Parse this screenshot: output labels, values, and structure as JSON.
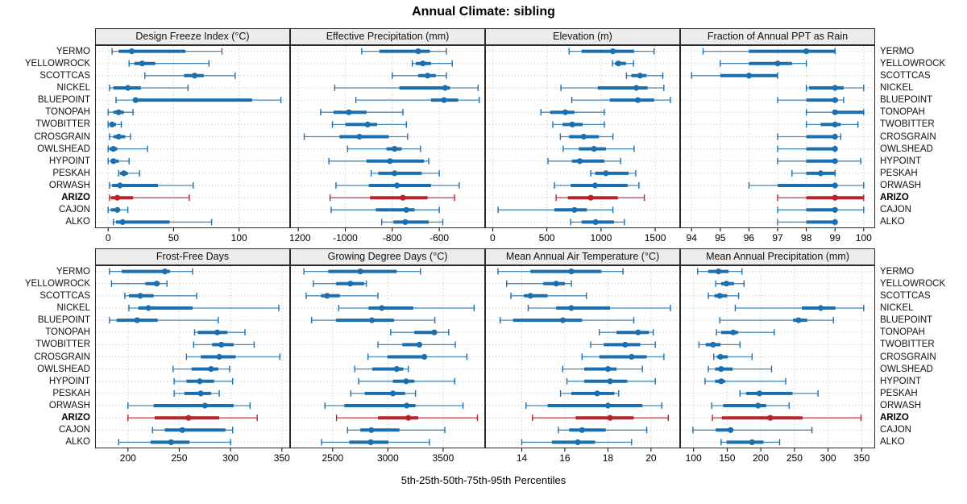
{
  "title": "Annual Climate: sibling",
  "footer": "5th-25th-50th-75th-95th Percentiles",
  "colors": {
    "series": "#1b6fae",
    "highlight": "#b5252c",
    "grid": "#bdbdbd",
    "strip_bg": "#ececec",
    "panel_border": "#2b2b2b",
    "text": "#000000"
  },
  "sites": [
    "YERMO",
    "YELLOWROCK",
    "SCOTTCAS",
    "NICKEL",
    "BLUEPOINT",
    "TONOPAH",
    "TWOBITTER",
    "CROSGRAIN",
    "OWLSHEAD",
    "HYPOINT",
    "PESKAH",
    "ORWASH",
    "ARIZO",
    "CAJON",
    "ALKO"
  ],
  "highlight_site": "ARIZO",
  "percentile_levels": [
    5,
    25,
    50,
    75,
    95
  ],
  "chart_data": [
    {
      "type": "dotplot",
      "title": "Design Freeze Index (°C)",
      "xlim": [
        -10,
        139
      ],
      "ticks": [
        0,
        50,
        100
      ],
      "tick_labels": [
        "0",
        "50",
        "100"
      ],
      "values": [
        [
          3,
          8,
          18,
          59,
          87
        ],
        [
          16,
          20,
          26,
          36,
          77
        ],
        [
          28,
          58,
          66,
          73,
          97
        ],
        [
          1,
          4,
          15,
          25,
          61
        ],
        [
          6,
          19,
          21,
          110,
          132
        ],
        [
          0,
          4,
          8,
          12,
          19
        ],
        [
          0,
          1,
          3,
          6,
          10
        ],
        [
          1,
          4,
          8,
          13,
          17
        ],
        [
          0,
          1,
          4,
          7,
          30
        ],
        [
          0,
          2,
          4,
          8,
          16
        ],
        [
          8,
          9,
          12,
          15,
          24
        ],
        [
          1,
          3,
          9,
          38,
          65
        ],
        [
          1,
          2,
          7,
          19,
          62
        ],
        [
          0,
          2,
          7,
          9,
          15
        ],
        [
          4,
          6,
          11,
          47,
          79
        ]
      ]
    },
    {
      "type": "dotplot",
      "title": "Effective Precipitation (mm)",
      "xlim": [
        -1235,
        -405
      ],
      "ticks": [
        -1200,
        -1000,
        -800,
        -600
      ],
      "tick_labels": [
        "-1200",
        "-1000",
        "-800",
        "-600"
      ],
      "values": [
        [
          -930,
          -855,
          -690,
          -640,
          -570
        ],
        [
          -715,
          -700,
          -670,
          -635,
          -545
        ],
        [
          -800,
          -690,
          -650,
          -615,
          -570
        ],
        [
          -1045,
          -770,
          -575,
          -555,
          -435
        ],
        [
          -955,
          -635,
          -580,
          -520,
          -430
        ],
        [
          -1105,
          -1050,
          -985,
          -910,
          -755
        ],
        [
          -1055,
          -1000,
          -905,
          -865,
          -740
        ],
        [
          -1175,
          -1025,
          -940,
          -815,
          -735
        ],
        [
          -990,
          -825,
          -790,
          -760,
          -680
        ],
        [
          -1070,
          -910,
          -810,
          -665,
          -645
        ],
        [
          -890,
          -860,
          -790,
          -675,
          -600
        ],
        [
          -1040,
          -900,
          -780,
          -635,
          -515
        ],
        [
          -1065,
          -895,
          -755,
          -650,
          -535
        ],
        [
          -1060,
          -870,
          -740,
          -705,
          -600
        ],
        [
          -845,
          -795,
          -745,
          -645,
          -585
        ]
      ]
    },
    {
      "type": "dotplot",
      "title": "Elevation (m)",
      "xlim": [
        -70,
        1730
      ],
      "ticks": [
        0,
        500,
        1000,
        1500
      ],
      "tick_labels": [
        "0",
        "500",
        "1000",
        "1500"
      ],
      "values": [
        [
          705,
          820,
          1110,
          1305,
          1490
        ],
        [
          1105,
          1130,
          1160,
          1230,
          1300
        ],
        [
          1235,
          1280,
          1360,
          1420,
          1570
        ],
        [
          630,
          970,
          1325,
          1430,
          1580
        ],
        [
          730,
          1080,
          1340,
          1490,
          1640
        ],
        [
          445,
          530,
          670,
          755,
          1030
        ],
        [
          555,
          645,
          735,
          830,
          1030
        ],
        [
          625,
          705,
          840,
          980,
          1110
        ],
        [
          650,
          795,
          935,
          1045,
          1305
        ],
        [
          510,
          730,
          805,
          1030,
          1180
        ],
        [
          905,
          945,
          1045,
          1255,
          1320
        ],
        [
          570,
          720,
          945,
          1245,
          1350
        ],
        [
          585,
          695,
          905,
          1155,
          1400
        ],
        [
          50,
          570,
          755,
          870,
          1110
        ],
        [
          720,
          820,
          950,
          1120,
          1215
        ]
      ]
    },
    {
      "type": "dotplot",
      "title": "Fraction of Annual PPT as Rain",
      "xlim": [
        93.6,
        100.4
      ],
      "ticks": [
        94,
        95,
        96,
        97,
        98,
        99,
        100
      ],
      "tick_labels": [
        "94",
        "95",
        "96",
        "97",
        "98",
        "99",
        "100"
      ],
      "values": [
        [
          94.4,
          96,
          98,
          99,
          99
        ],
        [
          95,
          96,
          97,
          97.5,
          98
        ],
        [
          94,
          95,
          96,
          97,
          97
        ],
        [
          98,
          98.1,
          99,
          99.3,
          100
        ],
        [
          97,
          98,
          99,
          99.1,
          99.3
        ],
        [
          98,
          99,
          99,
          100,
          100
        ],
        [
          98,
          98.5,
          99,
          99.2,
          99.8
        ],
        [
          97,
          98,
          99,
          99,
          99.2
        ],
        [
          97,
          98,
          99,
          99,
          99
        ],
        [
          97,
          98,
          99,
          99,
          99.9
        ],
        [
          97.5,
          98,
          98.5,
          99,
          99
        ],
        [
          96,
          97,
          99,
          99,
          100
        ],
        [
          97,
          98,
          99,
          100,
          100
        ],
        [
          97,
          98,
          99,
          99,
          100
        ],
        [
          97,
          98,
          99,
          99,
          99
        ]
      ]
    },
    {
      "type": "dotplot",
      "title": "Frost-Free Days",
      "xlim": [
        168,
        358
      ],
      "ticks": [
        200,
        250,
        300,
        350
      ],
      "tick_labels": [
        "200",
        "250",
        "300",
        "350"
      ],
      "values": [
        [
          182,
          194,
          236,
          241,
          263
        ],
        [
          184,
          217,
          228,
          231,
          238
        ],
        [
          197,
          201,
          212,
          225,
          267
        ],
        [
          201,
          210,
          220,
          263,
          347
        ],
        [
          182,
          189,
          209,
          229,
          288
        ],
        [
          265,
          268,
          287,
          297,
          314
        ],
        [
          264,
          282,
          291,
          303,
          323
        ],
        [
          257,
          271,
          289,
          305,
          348
        ],
        [
          244,
          262,
          281,
          288,
          299
        ],
        [
          245,
          257,
          270,
          284,
          302
        ],
        [
          245,
          255,
          271,
          281,
          289
        ],
        [
          200,
          225,
          275,
          303,
          319
        ],
        [
          200,
          226,
          259,
          289,
          326
        ],
        [
          224,
          236,
          253,
          295,
          302
        ],
        [
          191,
          222,
          242,
          260,
          300
        ]
      ]
    },
    {
      "type": "dotplot",
      "title": "Growing Degree Days (°C)",
      "xlim": [
        2115,
        3880
      ],
      "ticks": [
        2500,
        3000,
        3500
      ],
      "tick_labels": [
        "2500",
        "3000",
        "3500"
      ],
      "values": [
        [
          2240,
          2460,
          2750,
          3080,
          3295
        ],
        [
          2325,
          2530,
          2660,
          2785,
          2805
        ],
        [
          2260,
          2395,
          2450,
          2565,
          2910
        ],
        [
          2555,
          2825,
          2945,
          3230,
          3780
        ],
        [
          2310,
          2530,
          2855,
          3055,
          3425
        ],
        [
          3025,
          3240,
          3420,
          3440,
          3550
        ],
        [
          2910,
          3130,
          3285,
          3305,
          3610
        ],
        [
          2820,
          2995,
          3330,
          3350,
          3715
        ],
        [
          2700,
          2860,
          3080,
          3140,
          3185
        ],
        [
          2735,
          3045,
          3165,
          3240,
          3605
        ],
        [
          2665,
          2790,
          3045,
          3155,
          3250
        ],
        [
          2430,
          2605,
          3170,
          3250,
          3680
        ],
        [
          2535,
          2910,
          3185,
          3275,
          3810
        ],
        [
          2635,
          2750,
          2850,
          3105,
          3515
        ],
        [
          2400,
          2650,
          2845,
          3005,
          3375
        ]
      ]
    },
    {
      "type": "dotplot",
      "title": "Mean Annual Air Temperature (°C)",
      "xlim": [
        12.3,
        21.35
      ],
      "ticks": [
        14,
        16,
        18,
        20
      ],
      "tick_labels": [
        "14",
        "16",
        "18",
        "20"
      ],
      "values": [
        [
          12.9,
          14.4,
          16.3,
          17.7,
          18.7
        ],
        [
          13.3,
          15.0,
          15.6,
          16.0,
          16.3
        ],
        [
          13.5,
          14.1,
          14.4,
          15.2,
          17.0
        ],
        [
          14.3,
          15.6,
          16.3,
          18.1,
          20.9
        ],
        [
          13.0,
          13.6,
          15.9,
          16.8,
          19.2
        ],
        [
          17.6,
          18.4,
          19.4,
          19.9,
          20.1
        ],
        [
          17.2,
          17.8,
          18.8,
          19.5,
          20.2
        ],
        [
          16.8,
          17.6,
          19.1,
          19.8,
          20.6
        ],
        [
          15.9,
          16.9,
          18.0,
          18.4,
          19.6
        ],
        [
          16.1,
          16.9,
          18.1,
          18.9,
          20.2
        ],
        [
          15.8,
          16.3,
          17.5,
          18.3,
          18.5
        ],
        [
          14.2,
          15.2,
          18.0,
          19.6,
          20.5
        ],
        [
          14.5,
          16.5,
          18.1,
          19.2,
          20.8
        ],
        [
          15.7,
          16.2,
          16.8,
          17.9,
          19.8
        ],
        [
          14.0,
          15.4,
          16.6,
          17.4,
          19.1
        ]
      ]
    },
    {
      "type": "dotplot",
      "title": "Mean Annual Precipitation (mm)",
      "xlim": [
        80,
        370
      ],
      "ticks": [
        100,
        150,
        200,
        250,
        300,
        350
      ],
      "tick_labels": [
        "100",
        "150",
        "200",
        "250",
        "300",
        "350"
      ],
      "values": [
        [
          106,
          122,
          137,
          152,
          172
        ],
        [
          133,
          141,
          149,
          160,
          175
        ],
        [
          122,
          131,
          139,
          150,
          167
        ],
        [
          162,
          261,
          289,
          311,
          353
        ],
        [
          139,
          248,
          256,
          269,
          308
        ],
        [
          134,
          141,
          159,
          166,
          220
        ],
        [
          108,
          118,
          129,
          140,
          169
        ],
        [
          130,
          135,
          140,
          151,
          187
        ],
        [
          122,
          132,
          141,
          158,
          216
        ],
        [
          117,
          132,
          141,
          147,
          237
        ],
        [
          169,
          178,
          198,
          247,
          285
        ],
        [
          127,
          144,
          196,
          208,
          242
        ],
        [
          128,
          142,
          214,
          262,
          349
        ],
        [
          99,
          133,
          155,
          159,
          276
        ],
        [
          141,
          149,
          187,
          204,
          228
        ]
      ]
    }
  ]
}
